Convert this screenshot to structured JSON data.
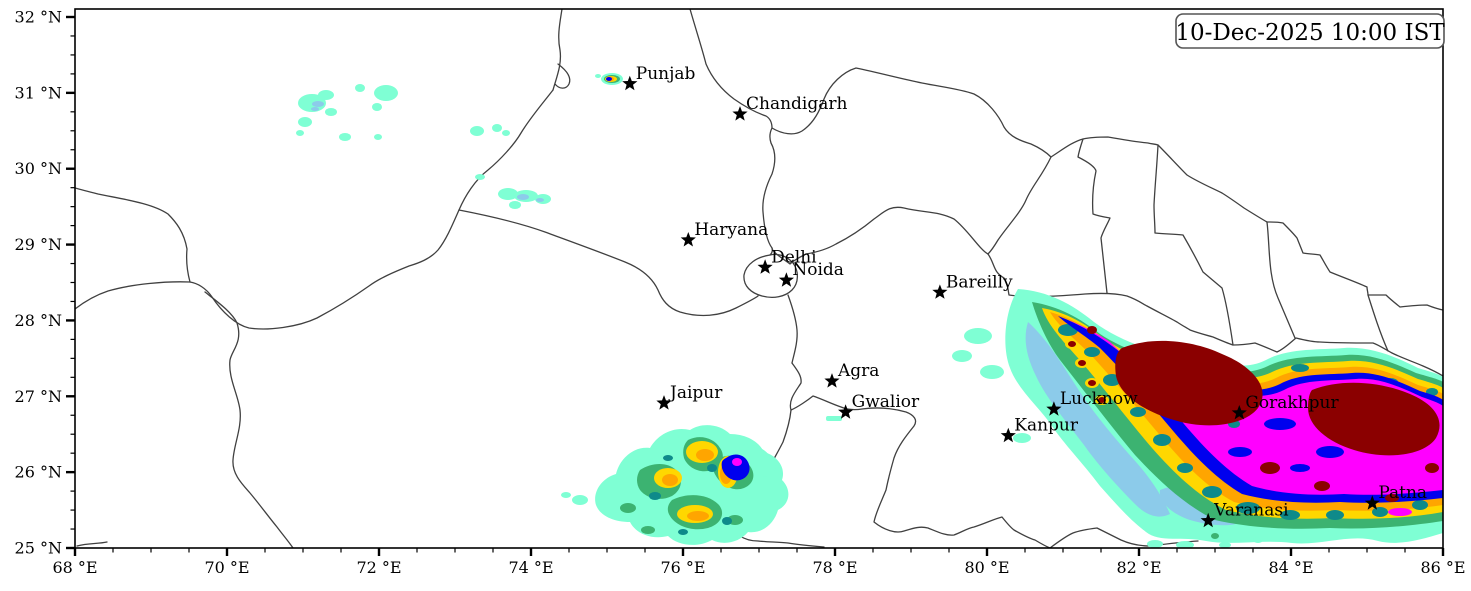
{
  "figure": {
    "timestamp_label": "10-Dec-2025 10:00 IST",
    "kind": "fog/low-visibility contour map over north India"
  },
  "axes": {
    "x": {
      "unit": "°E",
      "min": 68,
      "max": 86,
      "major_step": 2,
      "minor_step": 0.5,
      "ticks": [
        {
          "value": 68,
          "label": "68 °E"
        },
        {
          "value": 70,
          "label": "70 °E"
        },
        {
          "value": 72,
          "label": "72 °E"
        },
        {
          "value": 74,
          "label": "74 °E"
        },
        {
          "value": 76,
          "label": "76 °E"
        },
        {
          "value": 78,
          "label": "78 °E"
        },
        {
          "value": 80,
          "label": "80 °E"
        },
        {
          "value": 82,
          "label": "82 °E"
        },
        {
          "value": 84,
          "label": "84 °E"
        },
        {
          "value": 86,
          "label": "86 °E"
        }
      ]
    },
    "y": {
      "unit": "°N",
      "min": 25,
      "max": 32,
      "major_step": 1,
      "minor_step": 0.25,
      "ticks": [
        {
          "value": 25,
          "label": "25 °N"
        },
        {
          "value": 26,
          "label": "26 °N"
        },
        {
          "value": 27,
          "label": "27 °N"
        },
        {
          "value": 28,
          "label": "28 °N"
        },
        {
          "value": 29,
          "label": "29 °N"
        },
        {
          "value": 30,
          "label": "30 °N"
        },
        {
          "value": 31,
          "label": "31 °N"
        },
        {
          "value": 32,
          "label": "32 °N"
        }
      ]
    }
  },
  "cities": [
    {
      "name": "Punjab",
      "lon": 75.3,
      "lat": 31.12
    },
    {
      "name": "Chandigarh",
      "lon": 76.75,
      "lat": 30.72
    },
    {
      "name": "Haryana",
      "lon": 76.07,
      "lat": 29.06
    },
    {
      "name": "Delhi",
      "lon": 77.08,
      "lat": 28.7
    },
    {
      "name": "Noida",
      "lon": 77.36,
      "lat": 28.53
    },
    {
      "name": "Bareilly",
      "lon": 79.38,
      "lat": 28.37
    },
    {
      "name": "Agra",
      "lon": 77.96,
      "lat": 27.2
    },
    {
      "name": "Jaipur",
      "lon": 75.75,
      "lat": 26.91
    },
    {
      "name": "Gwalior",
      "lon": 78.14,
      "lat": 26.79
    },
    {
      "name": "Lucknow",
      "lon": 80.88,
      "lat": 26.83
    },
    {
      "name": "Kanpur",
      "lon": 80.28,
      "lat": 26.48
    },
    {
      "name": "Gorakhpur",
      "lon": 83.32,
      "lat": 26.78
    },
    {
      "name": "Patna",
      "lon": 85.07,
      "lat": 25.59
    },
    {
      "name": "Varanasi",
      "lon": 82.91,
      "lat": 25.36
    }
  ],
  "intensity_scale": {
    "description": "filled contour levels, lowest to highest intensity",
    "colors": [
      {
        "name": "aquamarine",
        "hex": "#7FFFD4"
      },
      {
        "name": "skyblue",
        "hex": "#8CCBEA"
      },
      {
        "name": "green",
        "hex": "#3CB371"
      },
      {
        "name": "teal",
        "hex": "#0E8A8A"
      },
      {
        "name": "gold",
        "hex": "#FFD700"
      },
      {
        "name": "orange",
        "hex": "#FFA500"
      },
      {
        "name": "blue",
        "hex": "#0000EE"
      },
      {
        "name": "magenta",
        "hex": "#FF00FF"
      },
      {
        "name": "darkred",
        "hex": "#8B0000"
      }
    ]
  }
}
